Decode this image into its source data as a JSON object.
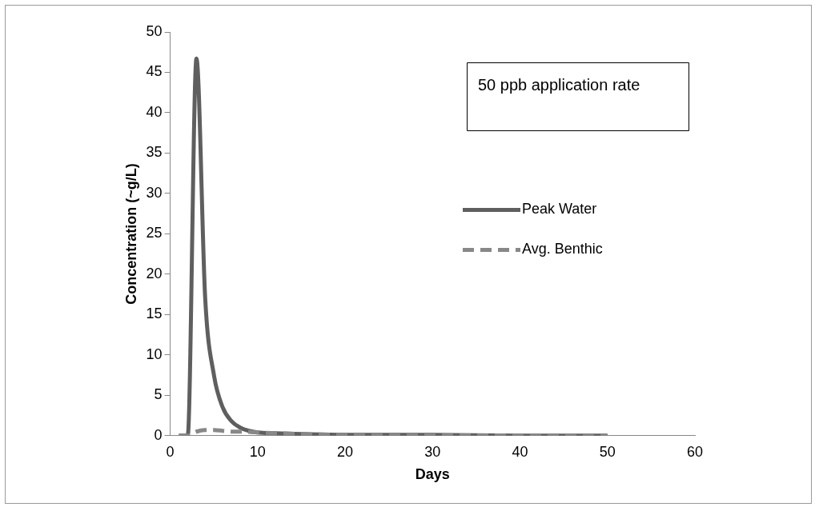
{
  "chart_data": {
    "type": "line",
    "xlabel": "Days",
    "ylabel": "Concentration (~g/L)",
    "annotations": [
      "50 ppb application rate"
    ],
    "xlim": [
      0,
      60
    ],
    "xticks": [
      0,
      10,
      20,
      30,
      40,
      50,
      60
    ],
    "ylim": [
      0,
      50
    ],
    "yticks": [
      0,
      5,
      10,
      15,
      20,
      25,
      30,
      35,
      40,
      45,
      50
    ],
    "grid": false,
    "legend": "right",
    "marker": "none",
    "series": [
      {
        "name": "Peak Water",
        "color": "#5f5f5f",
        "line_style": "solid",
        "x": [
          1,
          2,
          3,
          4,
          5,
          6,
          7,
          8,
          9,
          10,
          12,
          15,
          20,
          30,
          40,
          50
        ],
        "values": [
          0,
          0,
          46.7,
          17,
          7.5,
          3.5,
          1.8,
          1,
          0.6,
          0.4,
          0.3,
          0.2,
          0.1,
          0.1,
          0,
          0
        ]
      },
      {
        "name": "Avg. Benthic",
        "color": "#888888",
        "line_style": "dashed",
        "x": [
          1,
          2,
          3,
          4,
          5,
          6,
          7,
          8,
          10,
          15,
          20,
          50
        ],
        "values": [
          0,
          0,
          0.5,
          0.7,
          0.7,
          0.6,
          0.5,
          0.5,
          0.4,
          0.2,
          0.1,
          0
        ]
      }
    ]
  }
}
